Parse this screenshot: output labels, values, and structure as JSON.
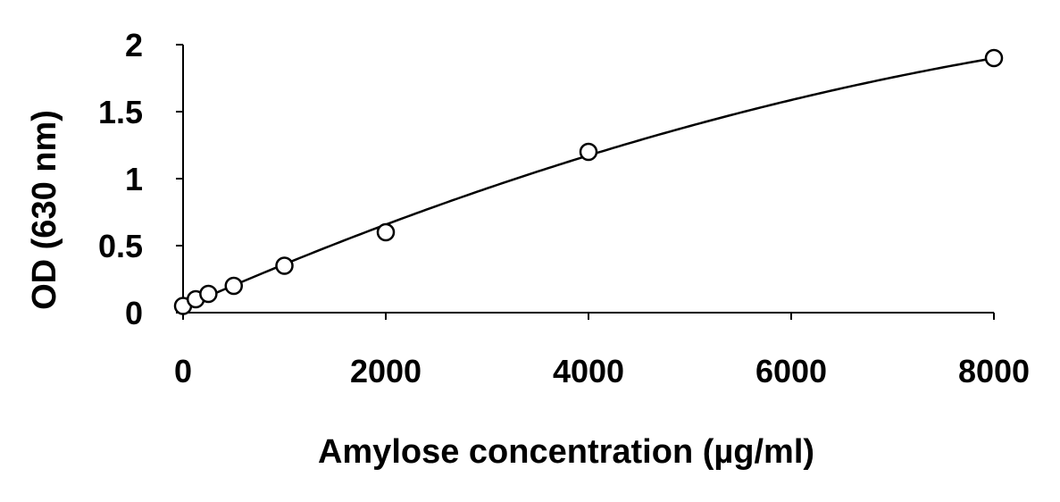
{
  "chart_data": {
    "type": "scatter",
    "title": "",
    "xlabel": "Amylose concentration (µg/ml)",
    "ylabel": "OD (630 nm)",
    "xlim": [
      0,
      8000
    ],
    "ylim": [
      0,
      2
    ],
    "xticks": [
      0,
      2000,
      4000,
      6000,
      8000
    ],
    "yticks": [
      0,
      0.5,
      1,
      1.5,
      2
    ],
    "xtick_labels": [
      "0",
      "2000",
      "4000",
      "6000",
      "8000"
    ],
    "ytick_labels": [
      "0",
      "0.5",
      "1",
      "1.5",
      "2"
    ],
    "grid": false,
    "legend": "none",
    "colors": {
      "axis": "#000000",
      "marker_stroke": "#000000",
      "marker_fill": "#ffffff",
      "curve": "#000000"
    },
    "series": [
      {
        "x": [
          0,
          125,
          250,
          500,
          1000,
          2000,
          4000,
          8000
        ],
        "y": [
          0.05,
          0.1,
          0.14,
          0.2,
          0.35,
          0.6,
          1.2,
          1.9
        ],
        "marker": "open-circle",
        "trendline": "polynomial-2",
        "trendline_coefficients": [
          0.04,
          0.000334,
          -1.27e-08
        ]
      }
    ]
  }
}
